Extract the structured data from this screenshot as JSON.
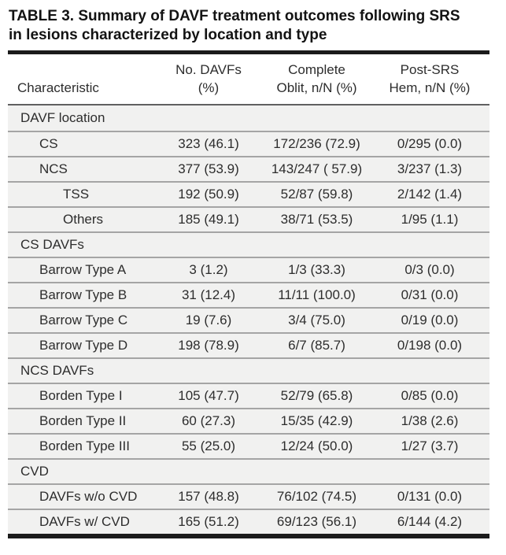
{
  "title": {
    "line1": "TABLE 3. Summary of DAVF treatment outcomes following SRS",
    "line2": "in lesions characterized by location and type"
  },
  "header": {
    "characteristic": "Characteristic",
    "no_davfs": [
      "No. DAVFs",
      "(%)"
    ],
    "oblit": [
      "Complete",
      "Oblit, n/N (%)"
    ],
    "hem": [
      "Post-SRS",
      "Hem, n/N (%)"
    ]
  },
  "rows": [
    {
      "label": "DAVF location",
      "level": 0,
      "section": true,
      "no_davfs": "",
      "oblit": "",
      "hem": ""
    },
    {
      "label": "CS",
      "level": 1,
      "section": false,
      "no_davfs": "323 (46.1)",
      "oblit": "172/236 (72.9)",
      "hem": "0/295 (0.0)"
    },
    {
      "label": "NCS",
      "level": 1,
      "section": false,
      "no_davfs": "377 (53.9)",
      "oblit": "143/247 ( 57.9)",
      "hem": "3/237 (1.3)"
    },
    {
      "label": "TSS",
      "level": 2,
      "section": false,
      "no_davfs": "192 (50.9)",
      "oblit": "52/87 (59.8)",
      "hem": "2/142 (1.4)"
    },
    {
      "label": "Others",
      "level": 2,
      "section": false,
      "no_davfs": "185 (49.1)",
      "oblit": "38/71 (53.5)",
      "hem": "1/95 (1.1)"
    },
    {
      "label": "CS DAVFs",
      "level": 0,
      "section": true,
      "no_davfs": "",
      "oblit": "",
      "hem": ""
    },
    {
      "label": "Barrow Type A",
      "level": 1,
      "section": false,
      "no_davfs": "3 (1.2)",
      "oblit": "1/3 (33.3)",
      "hem": "0/3 (0.0)"
    },
    {
      "label": "Barrow Type B",
      "level": 1,
      "section": false,
      "no_davfs": "31 (12.4)",
      "oblit": "11/11 (100.0)",
      "hem": "0/31 (0.0)"
    },
    {
      "label": "Barrow Type C",
      "level": 1,
      "section": false,
      "no_davfs": "19 (7.6)",
      "oblit": "3/4 (75.0)",
      "hem": "0/19 (0.0)"
    },
    {
      "label": "Barrow Type D",
      "level": 1,
      "section": false,
      "no_davfs": "198 (78.9)",
      "oblit": "6/7 (85.7)",
      "hem": "0/198 (0.0)"
    },
    {
      "label": "NCS DAVFs",
      "level": 0,
      "section": true,
      "no_davfs": "",
      "oblit": "",
      "hem": ""
    },
    {
      "label": "Borden Type I",
      "level": 1,
      "section": false,
      "no_davfs": "105 (47.7)",
      "oblit": "52/79 (65.8)",
      "hem": "0/85 (0.0)"
    },
    {
      "label": "Borden Type II",
      "level": 1,
      "section": false,
      "no_davfs": "60 (27.3)",
      "oblit": "15/35 (42.9)",
      "hem": "1/38 (2.6)"
    },
    {
      "label": "Borden Type III",
      "level": 1,
      "section": false,
      "no_davfs": "55 (25.0)",
      "oblit": "12/24 (50.0)",
      "hem": "1/27 (3.7)"
    },
    {
      "label": "CVD",
      "level": 0,
      "section": true,
      "no_davfs": "",
      "oblit": "",
      "hem": ""
    },
    {
      "label": "DAVFs w/o CVD",
      "level": 1,
      "section": false,
      "no_davfs": "157 (48.8)",
      "oblit": "76/102 (74.5)",
      "hem": "0/131 (0.0)"
    },
    {
      "label": "DAVFs w/ CVD",
      "level": 1,
      "section": false,
      "no_davfs": "165 (51.2)",
      "oblit": "69/123 (56.1)",
      "hem": "6/144 (4.2)"
    }
  ],
  "colors": {
    "rule_black": "#1b1b1b",
    "header_underline": "#606060",
    "row_background": "#f1f1f0",
    "row_separator": "#a5a5a5",
    "text": "#2d2d2d"
  }
}
